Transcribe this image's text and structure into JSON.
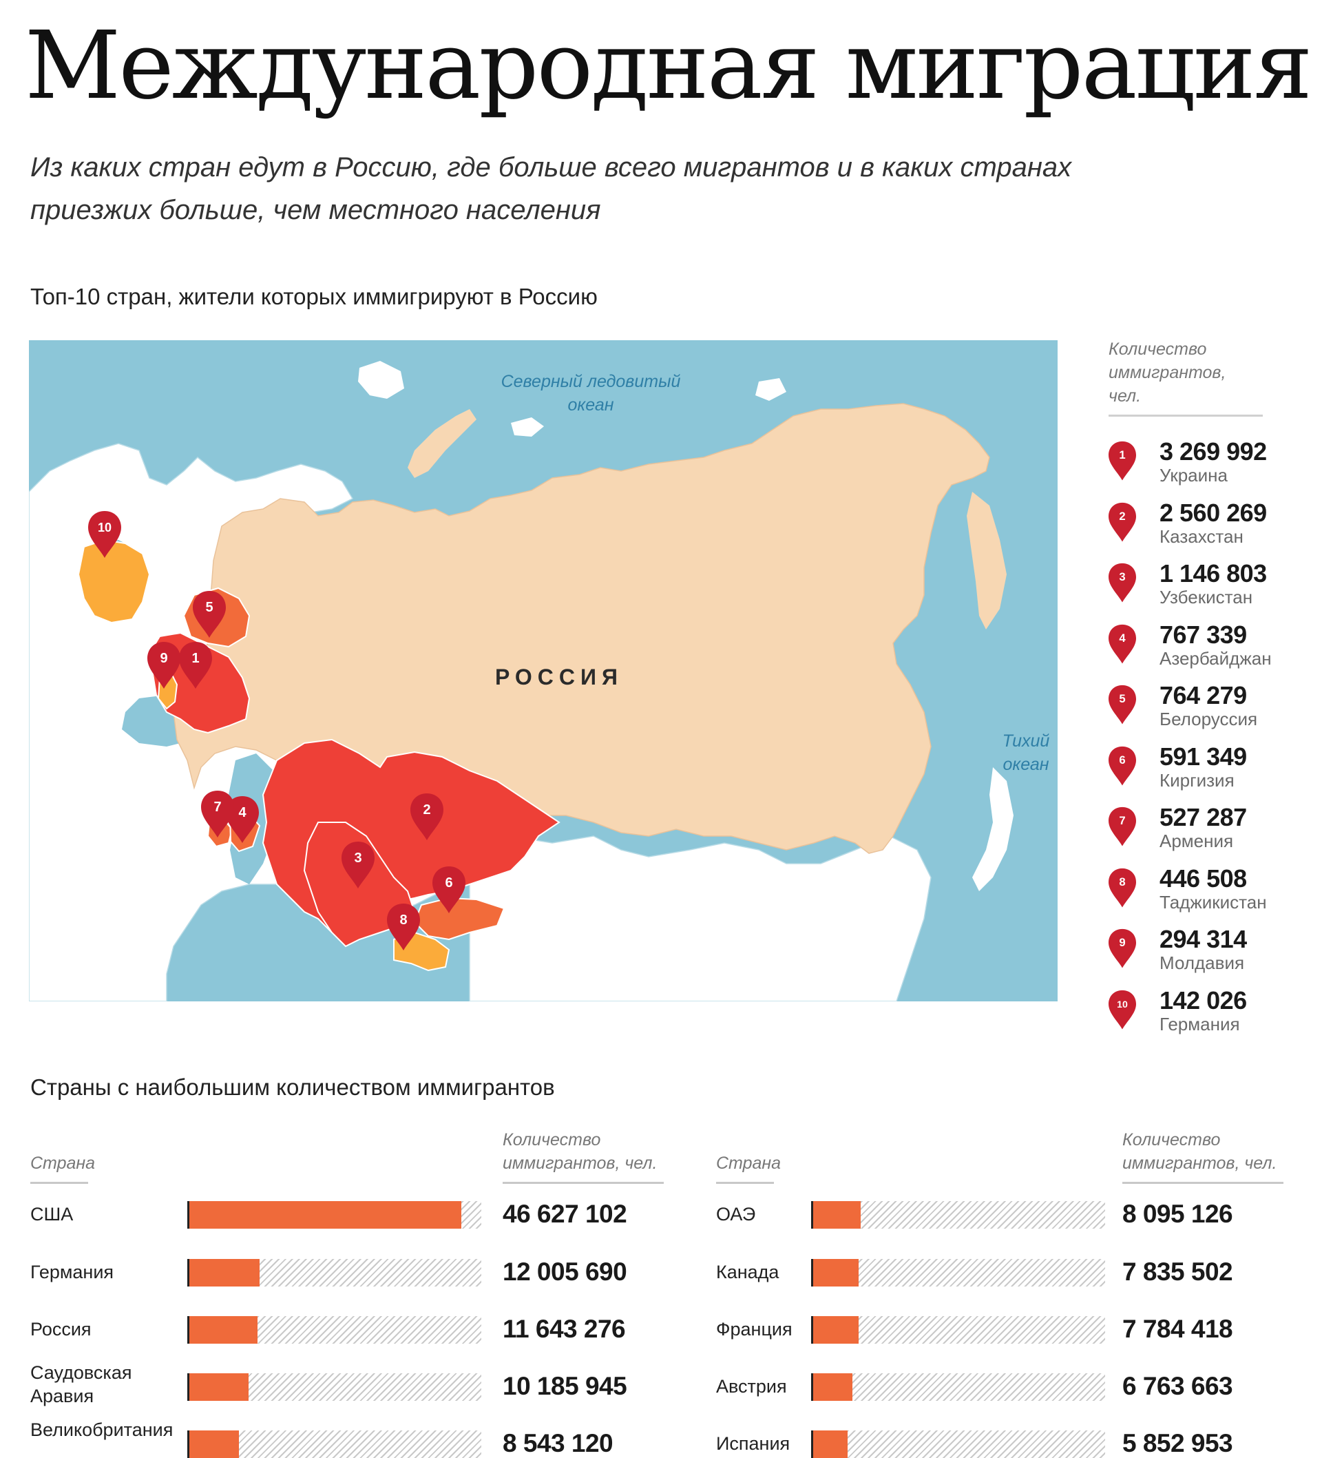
{
  "title": "Международная миграция",
  "subtitle": "Из каких стран едут в Россию, где больше всего мигрантов и в каких странах приезжих больше, чем местного населения",
  "map_section": {
    "title": "Топ-10 стран, жители которых иммигрируют в Россию",
    "labels": {
      "arctic_ocean_line1": "Северный ледовитый",
      "arctic_ocean_line2": "океан",
      "pacific_ocean_line1": "Тихий",
      "pacific_ocean_line2": "океан",
      "russia": "РОССИЯ"
    },
    "colors": {
      "water": "#8cc6d8",
      "russia": "#f7d7b3",
      "other_land": "#ffffff",
      "rank_high": "#ee4037",
      "rank_mid": "#f26b3a",
      "rank_low": "#fbab3a",
      "pin": "#c8202f"
    },
    "legend_header": "Количество иммигрантов, чел.",
    "legend": [
      {
        "rank": "1",
        "value": "3 269 992",
        "country": "Украина"
      },
      {
        "rank": "2",
        "value": "2 560 269",
        "country": "Казахстан"
      },
      {
        "rank": "3",
        "value": "1 146 803",
        "country": "Узбекистан"
      },
      {
        "rank": "4",
        "value": "767 339",
        "country": "Азербайджан"
      },
      {
        "rank": "5",
        "value": "764 279",
        "country": "Белоруссия"
      },
      {
        "rank": "6",
        "value": "591 349",
        "country": "Киргизия"
      },
      {
        "rank": "7",
        "value": "527 287",
        "country": "Армения"
      },
      {
        "rank": "8",
        "value": "446 508",
        "country": "Таджикистан"
      },
      {
        "rank": "9",
        "value": "294 314",
        "country": "Молдавия"
      },
      {
        "rank": "10",
        "value": "142 026",
        "country": "Германия"
      }
    ]
  },
  "bars_section": {
    "title": "Страны с наибольшим количеством иммигрантов",
    "col_country": "Страна",
    "col_count": "Количество иммигрантов, чел."
  },
  "chart_data": [
    {
      "type": "bar",
      "title": "Страны с наибольшим количеством иммигрантов",
      "xlabel": "Страна",
      "ylabel": "Количество иммигрантов, чел.",
      "ylim": [
        0,
        50000000
      ],
      "categories": [
        "США",
        "Германия",
        "Россия",
        "Саудовская Аравия",
        "Великобритания"
      ],
      "values": [
        46627102,
        12005690,
        11643276,
        10185945,
        8543120
      ],
      "value_labels": [
        "46 627 102",
        "12 005 690",
        "11 643 276",
        "10 185 945",
        "8 543 120"
      ]
    },
    {
      "type": "bar",
      "title": "Страны с наибольшим количеством иммигрантов",
      "xlabel": "Страна",
      "ylabel": "Количество иммигрантов, чел.",
      "ylim": [
        0,
        50000000
      ],
      "categories": [
        "ОАЭ",
        "Канада",
        "Франция",
        "Австрия",
        "Испания"
      ],
      "values": [
        8095126,
        7835502,
        7784418,
        6763663,
        5852953
      ],
      "value_labels": [
        "8 095 126",
        "7 835 502",
        "7 784 418",
        "6 763 663",
        "5 852 953"
      ]
    }
  ]
}
